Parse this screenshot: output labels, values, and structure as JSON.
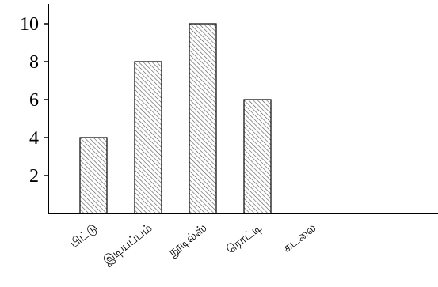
{
  "chart_data": {
    "type": "bar",
    "title": "",
    "xlabel": "",
    "ylabel": "",
    "categories": [
      "பிட்டு",
      "இடியப்பம்",
      "நூடில்ஸ்",
      "ரொட்டி",
      "கடலை"
    ],
    "values": [
      4,
      8,
      10,
      6,
      0
    ],
    "ylim": [
      0,
      11
    ],
    "yticks": [
      2,
      4,
      6,
      8,
      10
    ],
    "grid": false,
    "legend": "none",
    "bar_fill": "hatched",
    "colors": {
      "bar_fill": "#ffffff",
      "hatch": "#555555",
      "axis": "#000000"
    }
  }
}
